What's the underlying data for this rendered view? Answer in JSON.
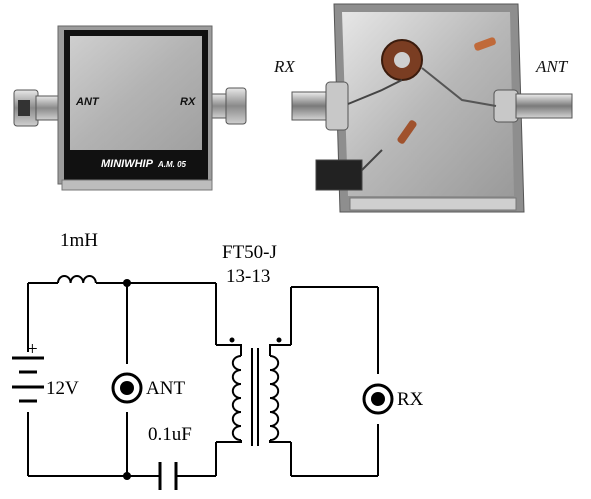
{
  "photo_left": {
    "port_left_label": "ANT",
    "port_right_label": "RX",
    "plate_brand": "MINIWHIP",
    "plate_model": "A.M. 05"
  },
  "photo_right": {
    "left_label": "RX",
    "right_label": "ANT"
  },
  "schematic": {
    "inductor_label": "1mH",
    "transformer_label_line1": "FT50-J",
    "transformer_label_line2": "13-13",
    "battery_plus": "+",
    "battery_voltage": "12V",
    "antenna_label": "ANT",
    "capacitor_label": "0.1uF",
    "receiver_label": "RX"
  }
}
